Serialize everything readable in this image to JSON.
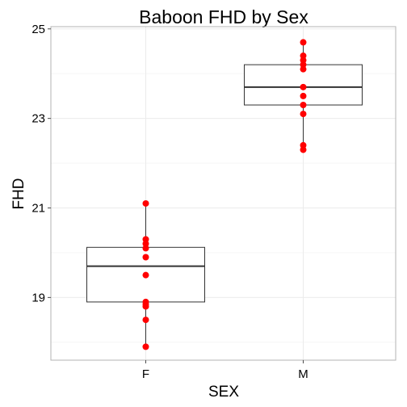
{
  "chart_data": {
    "type": "boxplot",
    "title": "Baboon FHD by Sex",
    "xlabel": "SEX",
    "ylabel": "FHD",
    "ylim": [
      17.6,
      25.05
    ],
    "yticks": [
      19,
      21,
      23,
      25
    ],
    "y_minor_ticks": [
      18,
      20,
      22,
      24
    ],
    "categories": [
      "F",
      "M"
    ],
    "boxes": [
      {
        "category": "F",
        "q1": 18.9,
        "median": 19.7,
        "q3": 20.12,
        "whisker_low": 17.9,
        "whisker_high": 21.1
      },
      {
        "category": "M",
        "q1": 23.3,
        "median": 23.7,
        "q3": 24.2,
        "whisker_low": 22.3,
        "whisker_high": 24.7
      }
    ],
    "points": [
      {
        "category": "F",
        "values": [
          21.1,
          20.3,
          20.2,
          20.1,
          19.9,
          19.5,
          18.9,
          18.85,
          18.8,
          18.5,
          17.9
        ]
      },
      {
        "category": "M",
        "values": [
          24.7,
          24.4,
          24.3,
          24.2,
          24.1,
          23.7,
          23.5,
          23.3,
          23.1,
          22.4,
          22.3
        ]
      }
    ],
    "point_color": "#ff0000",
    "grid": true
  }
}
